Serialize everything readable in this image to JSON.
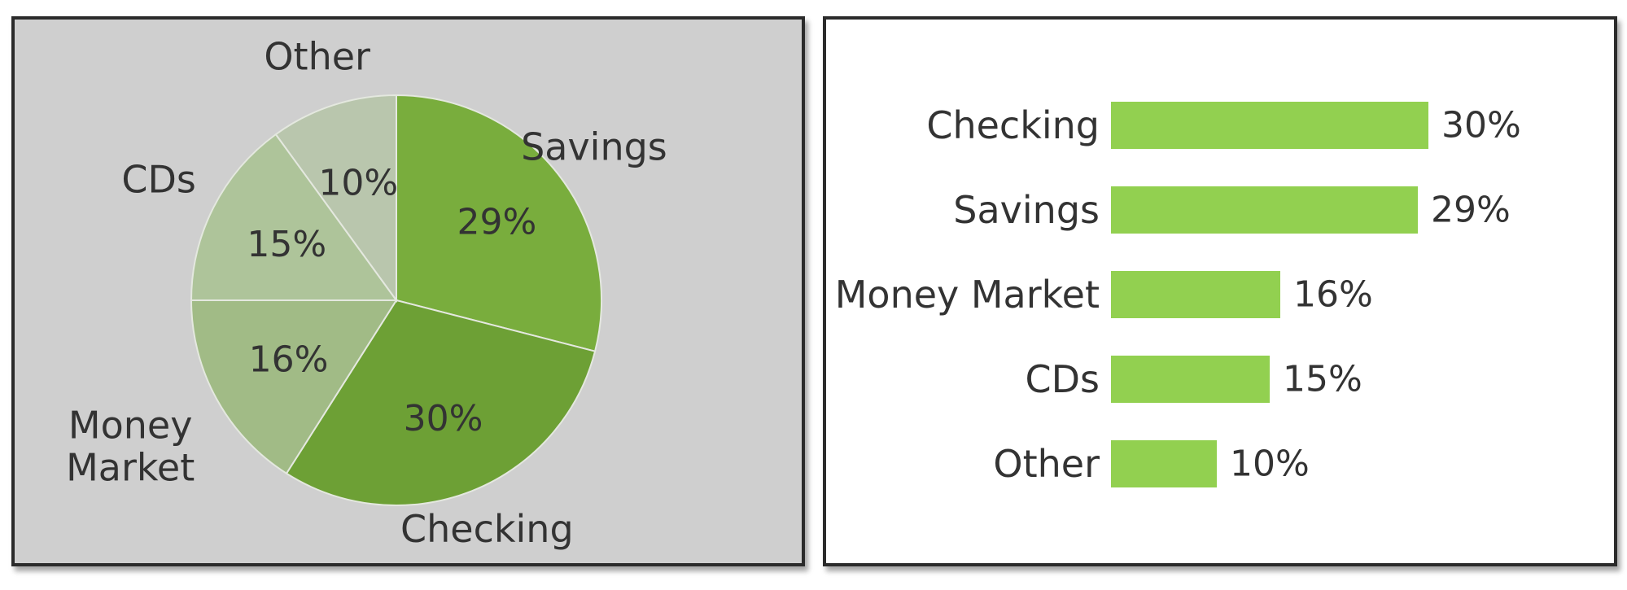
{
  "chart_data": [
    {
      "type": "pie",
      "slices": [
        {
          "label": "Savings",
          "value": 29,
          "value_label": "29%",
          "color": "#79ad3d"
        },
        {
          "label": "Checking",
          "value": 30,
          "value_label": "30%",
          "color": "#6da035"
        },
        {
          "label": "Money Market",
          "value": 16,
          "value_label": "16%",
          "color": "#a1bb86"
        },
        {
          "label": "CDs",
          "value": 15,
          "value_label": "15%",
          "color": "#aec49a"
        },
        {
          "label": "Other",
          "value": 10,
          "value_label": "10%",
          "color": "#b9c6ad"
        }
      ],
      "label_lines": {
        "Money Market": [
          "Money",
          "Market"
        ]
      },
      "panel_color": "#cfcfcf",
      "separator_color": "#e4e8df"
    },
    {
      "type": "bar",
      "orientation": "horizontal",
      "categories": [
        "Checking",
        "Savings",
        "Money Market",
        "CDs",
        "Other"
      ],
      "values": [
        30,
        29,
        16,
        15,
        10
      ],
      "value_labels": [
        "30%",
        "29%",
        "16%",
        "15%",
        "10%"
      ],
      "bar_color": "#92d050"
    }
  ]
}
